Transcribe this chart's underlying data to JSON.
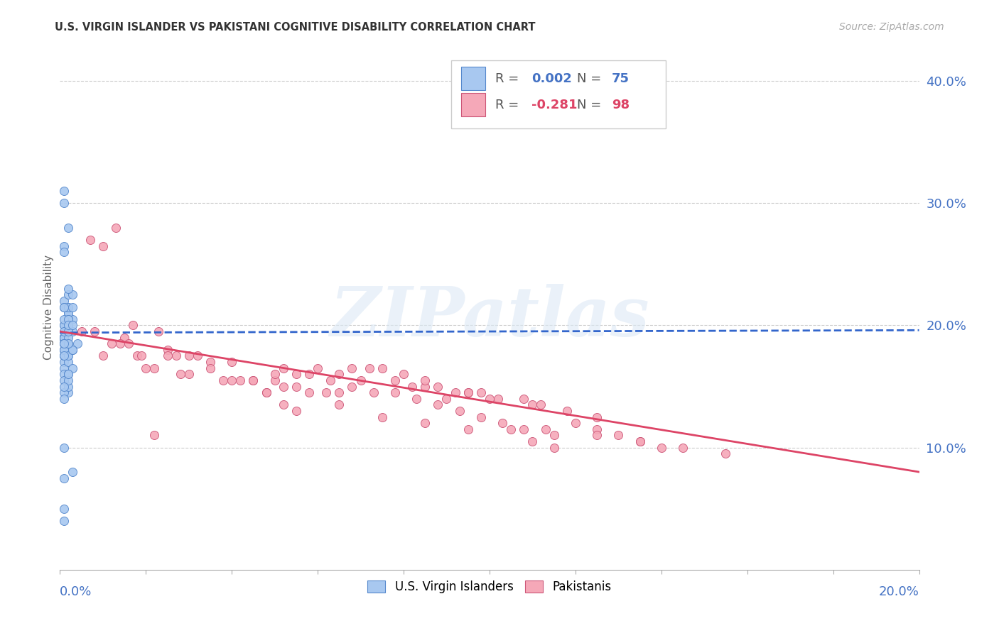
{
  "title": "U.S. VIRGIN ISLANDER VS PAKISTANI COGNITIVE DISABILITY CORRELATION CHART",
  "source": "Source: ZipAtlas.com",
  "ylabel": "Cognitive Disability",
  "right_yticks": [
    0.1,
    0.2,
    0.3,
    0.4
  ],
  "right_yticklabels": [
    "10.0%",
    "20.0%",
    "30.0%",
    "40.0%"
  ],
  "xmin": 0.0,
  "xmax": 0.2,
  "ymin": 0.0,
  "ymax": 0.43,
  "color_blue": "#a8c8f0",
  "color_pink": "#f5a8b8",
  "edge_blue": "#5588cc",
  "edge_pink": "#cc5577",
  "trendline_blue": "#3366cc",
  "trendline_pink": "#dd4466",
  "watermark": "ZIPatlas",
  "vi_x": [
    0.001,
    0.0008,
    0.001,
    0.0015,
    0.002,
    0.001,
    0.003,
    0.002,
    0.0015,
    0.004,
    0.001,
    0.002,
    0.002,
    0.001,
    0.001,
    0.002,
    0.003,
    0.002,
    0.001,
    0.002,
    0.001,
    0.001,
    0.002,
    0.002,
    0.001,
    0.001,
    0.003,
    0.002,
    0.001,
    0.002,
    0.001,
    0.002,
    0.001,
    0.001,
    0.003,
    0.001,
    0.002,
    0.001,
    0.002,
    0.001,
    0.002,
    0.001,
    0.001,
    0.002,
    0.002,
    0.003,
    0.001,
    0.001,
    0.002,
    0.001,
    0.001,
    0.002,
    0.002,
    0.001,
    0.003,
    0.001,
    0.002,
    0.001,
    0.002,
    0.001,
    0.001,
    0.002,
    0.002,
    0.002,
    0.003,
    0.003,
    0.001,
    0.002,
    0.001,
    0.002,
    0.003,
    0.001,
    0.002,
    0.001,
    0.001
  ],
  "vi_y": [
    0.265,
    0.19,
    0.3,
    0.215,
    0.195,
    0.22,
    0.195,
    0.21,
    0.2,
    0.185,
    0.19,
    0.185,
    0.205,
    0.18,
    0.17,
    0.195,
    0.205,
    0.2,
    0.185,
    0.21,
    0.215,
    0.26,
    0.225,
    0.205,
    0.19,
    0.31,
    0.225,
    0.175,
    0.165,
    0.215,
    0.2,
    0.215,
    0.2,
    0.175,
    0.215,
    0.175,
    0.195,
    0.18,
    0.17,
    0.16,
    0.145,
    0.155,
    0.185,
    0.195,
    0.16,
    0.165,
    0.18,
    0.145,
    0.15,
    0.14,
    0.1,
    0.155,
    0.16,
    0.075,
    0.08,
    0.04,
    0.175,
    0.205,
    0.19,
    0.05,
    0.195,
    0.205,
    0.195,
    0.28,
    0.18,
    0.18,
    0.215,
    0.23,
    0.15,
    0.2,
    0.2,
    0.185,
    0.185,
    0.185,
    0.175
  ],
  "pk_x": [
    0.01,
    0.02,
    0.015,
    0.025,
    0.03,
    0.012,
    0.008,
    0.018,
    0.022,
    0.016,
    0.035,
    0.028,
    0.04,
    0.05,
    0.055,
    0.03,
    0.035,
    0.04,
    0.045,
    0.05,
    0.055,
    0.06,
    0.065,
    0.07,
    0.08,
    0.085,
    0.09,
    0.095,
    0.1,
    0.11,
    0.045,
    0.052,
    0.058,
    0.062,
    0.065,
    0.025,
    0.032,
    0.027,
    0.019,
    0.014,
    0.068,
    0.072,
    0.075,
    0.078,
    0.082,
    0.085,
    0.088,
    0.092,
    0.095,
    0.098,
    0.102,
    0.108,
    0.112,
    0.118,
    0.125,
    0.052,
    0.058,
    0.063,
    0.068,
    0.073,
    0.078,
    0.083,
    0.088,
    0.093,
    0.098,
    0.103,
    0.108,
    0.113,
    0.12,
    0.125,
    0.055,
    0.065,
    0.075,
    0.085,
    0.095,
    0.105,
    0.115,
    0.125,
    0.135,
    0.145,
    0.048,
    0.155,
    0.14,
    0.135,
    0.13,
    0.038,
    0.042,
    0.048,
    0.052,
    0.022,
    0.01,
    0.005,
    0.007,
    0.013,
    0.017,
    0.023,
    0.115,
    0.11
  ],
  "pk_y": [
    0.175,
    0.165,
    0.19,
    0.18,
    0.16,
    0.185,
    0.195,
    0.175,
    0.165,
    0.185,
    0.17,
    0.16,
    0.155,
    0.155,
    0.15,
    0.175,
    0.165,
    0.17,
    0.155,
    0.16,
    0.16,
    0.165,
    0.16,
    0.155,
    0.16,
    0.15,
    0.14,
    0.145,
    0.14,
    0.135,
    0.155,
    0.15,
    0.145,
    0.145,
    0.145,
    0.175,
    0.175,
    0.175,
    0.175,
    0.185,
    0.165,
    0.165,
    0.165,
    0.155,
    0.15,
    0.155,
    0.15,
    0.145,
    0.145,
    0.145,
    0.14,
    0.14,
    0.135,
    0.13,
    0.125,
    0.165,
    0.16,
    0.155,
    0.15,
    0.145,
    0.145,
    0.14,
    0.135,
    0.13,
    0.125,
    0.12,
    0.115,
    0.115,
    0.12,
    0.115,
    0.13,
    0.135,
    0.125,
    0.12,
    0.115,
    0.115,
    0.11,
    0.11,
    0.105,
    0.1,
    0.145,
    0.095,
    0.1,
    0.105,
    0.11,
    0.155,
    0.155,
    0.145,
    0.135,
    0.11,
    0.265,
    0.195,
    0.27,
    0.28,
    0.2,
    0.195,
    0.1,
    0.105
  ],
  "vi_trend_x": [
    0.0,
    0.2
  ],
  "vi_trend_y": [
    0.194,
    0.196
  ],
  "pk_trend_x": [
    0.0,
    0.2
  ],
  "pk_trend_y": [
    0.195,
    0.08
  ]
}
